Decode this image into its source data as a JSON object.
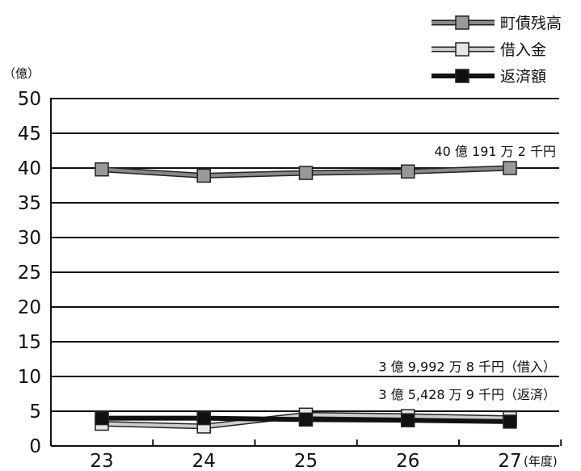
{
  "chart_data": {
    "type": "line",
    "y_unit": "（億）",
    "x_unit": "(年度)",
    "categories": [
      "23",
      "24",
      "25",
      "26",
      "27"
    ],
    "ylim": [
      0,
      50
    ],
    "yticks": [
      0,
      5,
      10,
      15,
      20,
      25,
      30,
      35,
      40,
      45,
      50
    ],
    "grid": true,
    "legend_position": "top-right",
    "series": [
      {
        "name": "町債残高",
        "values": [
          39.8,
          38.9,
          39.3,
          39.5,
          40.0
        ],
        "line_color": "#888888",
        "marker_color": "#999999"
      },
      {
        "name": "借入金",
        "values": [
          3.2,
          2.8,
          4.5,
          4.3,
          4.0
        ],
        "line_color": "#cccccc",
        "marker_color": "#e6e6e6"
      },
      {
        "name": "返済額",
        "values": [
          4.0,
          4.0,
          3.8,
          3.7,
          3.5
        ],
        "line_color": "#111111",
        "marker_color": "#111111"
      }
    ],
    "annotations": [
      {
        "text": "40 億 191 万 2 千円",
        "anchor_y": 40.0
      },
      {
        "text": "3 億 9,992 万 8 千円（借入）",
        "anchor_y": 9.0
      },
      {
        "text": "3 億 5,428 万 9 千円（返済）",
        "anchor_y": 5.0
      }
    ]
  }
}
